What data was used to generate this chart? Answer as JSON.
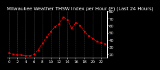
{
  "title": "Milwaukee Weather THSW Index per Hour (F) (Last 24 Hours)",
  "hours": [
    0,
    1,
    2,
    3,
    4,
    5,
    6,
    7,
    8,
    9,
    10,
    11,
    12,
    13,
    14,
    15,
    16,
    17,
    18,
    19,
    20,
    21,
    22,
    23
  ],
  "values": [
    22,
    20,
    19,
    19,
    18,
    18,
    20,
    26,
    35,
    44,
    52,
    58,
    62,
    72,
    68,
    56,
    64,
    60,
    52,
    46,
    42,
    38,
    36,
    34
  ],
  "ylim": [
    15,
    80
  ],
  "yticks": [
    20,
    30,
    40,
    50,
    60,
    70,
    80
  ],
  "line_color": "#FF0000",
  "bg_color": "#000000",
  "plot_bg": "#000000",
  "grid_color": "#555555",
  "title_color": "#FFFFFF",
  "tick_color": "#FFFFFF",
  "title_fontsize": 5.0,
  "tick_fontsize": 4.0
}
